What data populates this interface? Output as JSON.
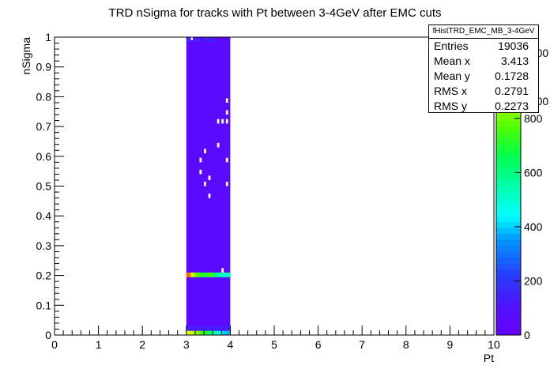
{
  "chart_data": {
    "type": "heatmap",
    "title": "TRD nSigma for tracks with Pt between 3-4GeV after EMC cuts",
    "xlabel": "Pt",
    "ylabel": "nSigma",
    "xlim": [
      0,
      10
    ],
    "ylim": [
      0,
      1
    ],
    "x_ticks": [
      "0",
      "1",
      "2",
      "3",
      "4",
      "5",
      "6",
      "7",
      "8",
      "9",
      "10"
    ],
    "y_ticks": [
      "0",
      "0.1",
      "0.2",
      "0.3",
      "0.4",
      "0.5",
      "0.6",
      "0.7",
      "0.8",
      "0.9",
      "1"
    ],
    "z_ticks": [
      "0",
      "200",
      "400",
      "600",
      "800",
      "1000",
      "1000"
    ],
    "z_range": [
      0,
      1100
    ],
    "legend_position": "top-right",
    "stats": {
      "name": "fHistTRD_EMC_MB_3-4GeV",
      "rows": [
        {
          "label": "Entries",
          "value": "19036"
        },
        {
          "label": "Mean x",
          "value": "3.413"
        },
        {
          "label": "Mean y",
          "value": "0.1728"
        },
        {
          "label": "RMS x",
          "value": "0.2791"
        },
        {
          "label": "RMS y",
          "value": "0.2273"
        }
      ]
    },
    "bins": {
      "x_edges": [
        3.0,
        3.1,
        3.2,
        3.3,
        3.4,
        3.5,
        3.6,
        3.7,
        3.8,
        3.9,
        4.0
      ],
      "y_step": 0.015,
      "base_band": {
        "x_range": [
          3.0,
          4.0
        ],
        "y_range": [
          0.0,
          1.0
        ],
        "z": 60
      },
      "empty_cells": [
        [
          3.9,
          0.78
        ],
        [
          3.9,
          0.74
        ],
        [
          3.7,
          0.71
        ],
        [
          3.8,
          0.71
        ],
        [
          3.9,
          0.71
        ],
        [
          3.7,
          0.63
        ],
        [
          3.4,
          0.61
        ],
        [
          3.3,
          0.58
        ],
        [
          3.9,
          0.58
        ],
        [
          3.3,
          0.54
        ],
        [
          3.5,
          0.52
        ],
        [
          3.4,
          0.5
        ],
        [
          3.9,
          0.5
        ],
        [
          3.5,
          0.46
        ],
        [
          3.8,
          0.21
        ],
        [
          3.1,
          0.99
        ]
      ],
      "hot_cells": [
        [
          3.0,
          0.195,
          1050
        ],
        [
          3.1,
          0.195,
          900
        ],
        [
          3.2,
          0.195,
          780
        ],
        [
          3.3,
          0.195,
          720
        ],
        [
          3.4,
          0.195,
          700
        ],
        [
          3.5,
          0.195,
          760
        ],
        [
          3.6,
          0.195,
          620
        ],
        [
          3.7,
          0.195,
          560
        ],
        [
          3.8,
          0.195,
          520
        ],
        [
          3.9,
          0.195,
          520
        ],
        [
          3.0,
          0.0,
          930
        ],
        [
          3.1,
          0.0,
          880
        ],
        [
          3.2,
          0.0,
          820
        ],
        [
          3.3,
          0.0,
          760
        ],
        [
          3.4,
          0.0,
          700
        ],
        [
          3.5,
          0.0,
          620
        ],
        [
          3.6,
          0.0,
          540
        ],
        [
          3.7,
          0.0,
          470
        ],
        [
          3.8,
          0.0,
          400
        ],
        [
          3.9,
          0.0,
          380
        ],
        [
          3.0,
          0.015,
          130
        ],
        [
          3.1,
          0.015,
          130
        ],
        [
          3.2,
          0.015,
          130
        ],
        [
          3.3,
          0.015,
          130
        ],
        [
          3.4,
          0.015,
          130
        ],
        [
          3.5,
          0.015,
          130
        ],
        [
          3.6,
          0.015,
          130
        ],
        [
          3.7,
          0.015,
          130
        ],
        [
          3.8,
          0.015,
          130
        ],
        [
          3.9,
          0.015,
          130
        ],
        [
          3.0,
          0.985,
          150
        ],
        [
          3.2,
          0.985,
          150
        ],
        [
          3.4,
          0.985,
          150
        ],
        [
          3.5,
          0.985,
          150
        ]
      ]
    }
  }
}
